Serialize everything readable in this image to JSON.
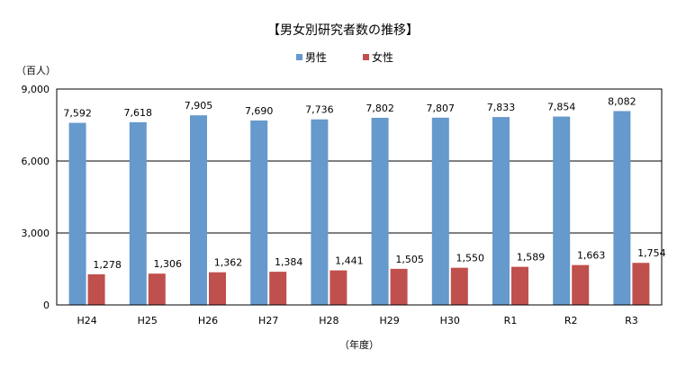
{
  "chart_data": {
    "type": "bar",
    "title": "【男女別研究者数の推移】",
    "ylabel": "（百人）",
    "xlabel": "（年度）",
    "categories": [
      "H24",
      "H25",
      "H26",
      "H27",
      "H28",
      "H29",
      "H30",
      "R1",
      "R2",
      "R3"
    ],
    "series": [
      {
        "name": "男性",
        "color": "#6699CC",
        "values": [
          7592,
          7618,
          7905,
          7690,
          7736,
          7802,
          7807,
          7833,
          7854,
          8082
        ],
        "labels": [
          "7,592",
          "7,618",
          "7,905",
          "7,690",
          "7,736",
          "7,802",
          "7,807",
          "7,833",
          "7,854",
          "8,082"
        ]
      },
      {
        "name": "女性",
        "color": "#C0504D",
        "values": [
          1278,
          1306,
          1362,
          1384,
          1441,
          1505,
          1550,
          1589,
          1663,
          1754
        ],
        "labels": [
          "1,278",
          "1,306",
          "1,362",
          "1,384",
          "1,441",
          "1,505",
          "1,550",
          "1,589",
          "1,663",
          "1,754"
        ]
      }
    ],
    "ylim": [
      0,
      9000
    ],
    "yticks": [
      0,
      3000,
      6000,
      9000
    ],
    "ytick_labels": [
      "0",
      "3,000",
      "6,000",
      "9,000"
    ],
    "grid": true,
    "legend_position": "top-right"
  }
}
